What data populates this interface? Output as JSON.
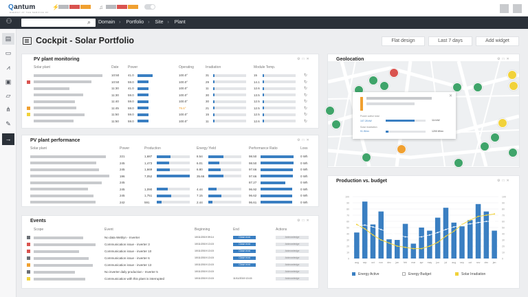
{
  "app": {
    "logo": "antum",
    "logo_letter": "Q",
    "tagline": "ENERGY AT THE SERVICE OF"
  },
  "breadcrumb": [
    "Domain",
    "Portfolio",
    "Site",
    "Plant"
  ],
  "page": {
    "title": "Cockpit - Solar Portfolio"
  },
  "header_buttons": [
    "Flat design",
    "Last 7 days",
    "Add widget"
  ],
  "colors": {
    "accent_blue": "#3a7fc2",
    "alert_red": "#d9534f",
    "warning_orange": "#f0a030",
    "solar_yellow": "#f1d23a",
    "nav_dark": "#2b3139",
    "map_green": "#3fa46a"
  },
  "monitoring": {
    "title": "PV plant monitoring",
    "headers": [
      "Solar plant",
      "Date",
      "Power",
      "Operating",
      "Irradiation",
      "Module Temp."
    ],
    "rows": [
      {
        "marker": "",
        "time": "10:50",
        "power": "41.0",
        "op": "100.0°",
        "irr": "31",
        "temp": "15"
      },
      {
        "marker": "red",
        "time": "10:50",
        "power": "59.0",
        "op": "100.0°",
        "irr": "29",
        "temp": "14.1"
      },
      {
        "marker": "",
        "time": "11:30",
        "power": "41.0",
        "op": "100.0°",
        "irr": "11",
        "temp": "12.6"
      },
      {
        "marker": "",
        "time": "11:30",
        "power": "59.0",
        "op": "100.0°",
        "irr": "30",
        "temp": "13.5"
      },
      {
        "marker": "",
        "time": "11:40",
        "power": "59.0",
        "op": "100.0°",
        "irr": "30",
        "temp": "12.5"
      },
      {
        "marker": "orange",
        "time": "11:45",
        "power": "59.0",
        "op": "79.6°",
        "irr": "21",
        "temp": "12.5"
      },
      {
        "marker": "yellow",
        "time": "11:50",
        "power": "59.0",
        "op": "100.0°",
        "irr": "15",
        "temp": "12.5"
      },
      {
        "marker": "",
        "time": "11:50",
        "power": "59.0",
        "op": "100.0°",
        "irr": "11",
        "temp": "12.6"
      }
    ]
  },
  "performance": {
    "title": "PV plant performance",
    "headers": [
      "Solar plant",
      "Power",
      "Production",
      "Energy Yield",
      "Performance Ratio",
      "Loss"
    ],
    "rows": [
      {
        "marker": "",
        "power": "221",
        "prod": "1,687",
        "yield": "8.54",
        "pr": "98.50",
        "loss": "0 Wh"
      },
      {
        "marker": "",
        "power": "245",
        "prod": "1,473",
        "yield": "6.01",
        "pr": "98.50",
        "loss": "0 Wh"
      },
      {
        "marker": "",
        "power": "245",
        "prod": "1,669",
        "yield": "6.80",
        "pr": "97.66",
        "loss": "0 Wh"
      },
      {
        "marker": "",
        "power": "196",
        "prod": "7,052",
        "yield": "35.66",
        "pr": "97.66",
        "loss": "0 Wh"
      },
      {
        "marker": "",
        "power": "245",
        "prod": "",
        "yield": "",
        "pr": "87.27",
        "loss": "0 Wh"
      },
      {
        "marker": "",
        "power": "245",
        "prod": "1,090",
        "yield": "4.44",
        "pr": "96.92",
        "loss": "0 Wh"
      },
      {
        "marker": "",
        "power": "245",
        "prod": "1,751",
        "yield": "7.15",
        "pr": "96.62",
        "loss": "0 Wh"
      },
      {
        "marker": "",
        "power": "242",
        "prod": "591",
        "yield": "2.44",
        "pr": "96.61",
        "loss": "0 Wh"
      }
    ]
  },
  "events": {
    "title": "Events",
    "headers": [
      "Scope",
      "Event",
      "Beginning",
      "End",
      "Actions"
    ],
    "rows": [
      {
        "marker": "gray",
        "event": "No data Weblyn - Inverter",
        "begin": "10/11/2019 09:14",
        "end": "Close evnt",
        "action": "Acknowledge"
      },
      {
        "marker": "red",
        "event": "Communication issue - inverter 3",
        "begin": "10/11/2019 13:15",
        "end": "Close evnt",
        "action": "Acknowledge"
      },
      {
        "marker": "red",
        "event": "Communication issue - inverter 10",
        "begin": "10/11/2019 13:15",
        "end": "Close evnt",
        "action": "Acknowledge"
      },
      {
        "marker": "gray",
        "event": "Communication issue - inverter 6",
        "begin": "10/11/2019 13:15",
        "end": "Close evnt",
        "action": "Acknowledge"
      },
      {
        "marker": "orange",
        "event": "Communication issue - inverter 13",
        "begin": "10/11/2019 13:15",
        "end": "Close evnt",
        "action": "Acknowledge"
      },
      {
        "marker": "gray",
        "event": "No inverter daily production - Inverter 5",
        "begin": "10/11/2019 13:15",
        "end": "",
        "action": "Acknowledge"
      },
      {
        "marker": "yellow",
        "event": "Communication with this plant is interrupted",
        "begin": "10/11/2019 13:15",
        "end": "11/11/2019 13:15",
        "action": "Acknowledge"
      }
    ]
  },
  "geolocation": {
    "title": "Geolocation",
    "popup": {
      "line1": "Power active total",
      "value1": "107.28 kW",
      "right1": "114 kW",
      "line2": "Solar irradiation",
      "value2": "91 W/m²",
      "right2": "1200 W/m²",
      "fill1": 0.72,
      "fill2": 0.07
    }
  },
  "chart_data": {
    "type": "bar",
    "title": "Production vs. budget",
    "categories": [
      "aug",
      "sep",
      "oct",
      "nov",
      "dec",
      "jan",
      "feb",
      "mar",
      "apr",
      "may",
      "jun",
      "jul",
      "aug",
      "sep",
      "oct",
      "nov",
      "dec",
      "jan"
    ],
    "series": [
      {
        "name": "Energy Active",
        "kind": "bar",
        "color": "#3a7fc2",
        "values": [
          42,
          92,
          55,
          76,
          31,
          30,
          56,
          24,
          50,
          45,
          66,
          82,
          58,
          52,
          62,
          88,
          76,
          45
        ]
      },
      {
        "name": "Energy Budget",
        "kind": "line",
        "color": "#ffffff",
        "values": [
          52,
          54,
          51,
          47,
          42,
          38,
          35,
          34,
          35,
          38,
          42,
          47,
          51,
          54,
          56,
          58,
          60,
          60
        ]
      },
      {
        "name": "Solar Irradiation",
        "kind": "line",
        "color": "#f1d23a",
        "values": [
          55,
          48,
          38,
          30,
          25,
          20,
          18,
          16,
          16,
          20,
          26,
          36,
          44,
          55,
          62,
          68,
          70,
          72
        ]
      }
    ],
    "ylim": [
      0,
      100
    ],
    "grid": true,
    "legend": "bottom"
  }
}
